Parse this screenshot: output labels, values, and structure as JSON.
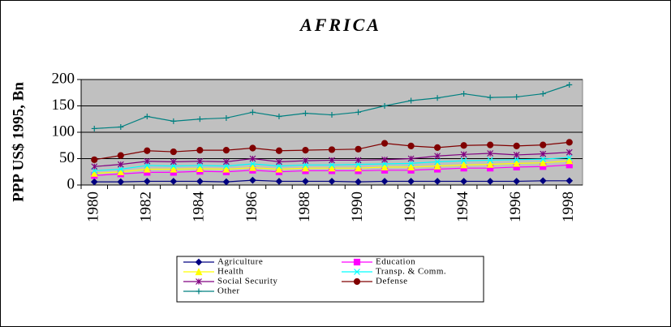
{
  "chart_data": {
    "type": "line",
    "title": "AFRICA",
    "y_label": "PPP US$ 1995, Bn",
    "categories": [
      "1980",
      null,
      "1982",
      null,
      "1984",
      null,
      "1986",
      null,
      "1988",
      null,
      "1990",
      null,
      "1992",
      null,
      "1994",
      null,
      "1996",
      null,
      "1998"
    ],
    "ylim": [
      0,
      200
    ],
    "yticks": [
      0,
      50,
      100,
      150,
      200
    ],
    "grid": true,
    "legend": "bottom",
    "plot_background": "#c0c0c0",
    "series": [
      {
        "name": "Agriculture",
        "color": "#000080",
        "marker": "diamond",
        "values": [
          6,
          6,
          7,
          7,
          7,
          6,
          9,
          7,
          7,
          7,
          6,
          7,
          7,
          7,
          7,
          7,
          7,
          8,
          8
        ]
      },
      {
        "name": "Education",
        "color": "#ff00ff",
        "marker": "square",
        "values": [
          18,
          21,
          24,
          24,
          26,
          25,
          28,
          25,
          27,
          27,
          27,
          28,
          28,
          30,
          32,
          32,
          34,
          35,
          38
        ]
      },
      {
        "name": "Health",
        "color": "#ffff00",
        "marker": "triangle",
        "values": [
          22,
          25,
          30,
          30,
          31,
          30,
          33,
          30,
          32,
          32,
          32,
          34,
          34,
          36,
          38,
          39,
          41,
          42,
          46
        ]
      },
      {
        "name": "Transp. & Comm.",
        "color": "#00ffff",
        "marker": "x",
        "values": [
          27,
          30,
          37,
          36,
          37,
          36,
          40,
          36,
          38,
          38,
          39,
          40,
          41,
          44,
          46,
          47,
          48,
          49,
          52
        ]
      },
      {
        "name": "Social Security",
        "color": "#800080",
        "marker": "star",
        "values": [
          35,
          39,
          45,
          44,
          45,
          44,
          50,
          44,
          46,
          47,
          47,
          48,
          50,
          55,
          58,
          60,
          57,
          59,
          62
        ]
      },
      {
        "name": "Defense",
        "color": "#800000",
        "marker": "circle",
        "values": [
          48,
          56,
          65,
          63,
          66,
          66,
          70,
          65,
          66,
          67,
          68,
          79,
          74,
          71,
          75,
          76,
          74,
          76,
          81
        ]
      },
      {
        "name": "Other",
        "color": "#008080",
        "marker": "plus",
        "values": [
          107,
          110,
          130,
          121,
          125,
          127,
          138,
          130,
          136,
          133,
          138,
          150,
          160,
          165,
          173,
          166,
          167,
          173,
          190
        ]
      }
    ]
  }
}
